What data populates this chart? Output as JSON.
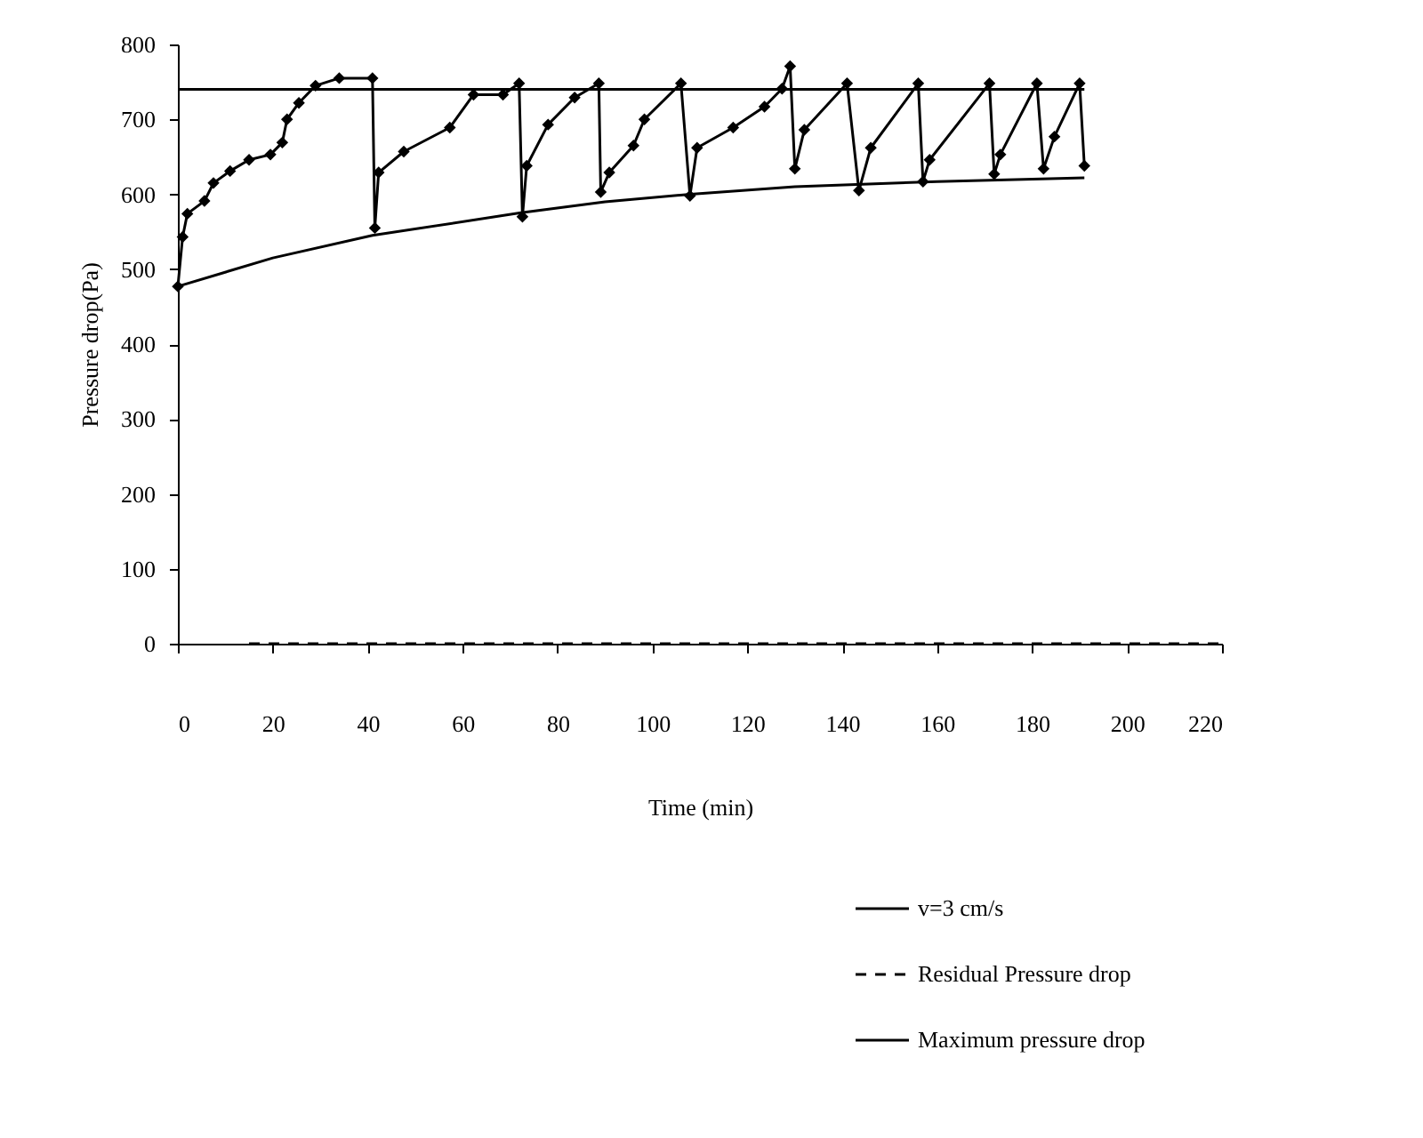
{
  "chart_data": {
    "type": "line",
    "xlabel": "Time (min)",
    "ylabel": "Pressure drop(Pa)",
    "xlim": [
      0,
      220
    ],
    "xticks": [
      0,
      20,
      40,
      60,
      80,
      100,
      120,
      140,
      160,
      180,
      200,
      220
    ],
    "ylim": [
      0,
      800
    ],
    "yticks": [
      0,
      100,
      200,
      300,
      400,
      500,
      600,
      700,
      800
    ],
    "grid": false,
    "legend": "bottom right",
    "series": [
      {
        "name": "v=3 cm/s",
        "color": "#000000",
        "marker": "diamond",
        "line_style": "solid",
        "x": [
          0,
          1,
          2,
          5.6,
          7.5,
          11,
          15,
          19.5,
          22,
          23,
          25.5,
          29,
          34,
          41,
          41.5,
          42.3,
          47.6,
          57.3,
          62.3,
          68.5,
          71.9,
          72.6,
          73.5,
          78,
          83.6,
          88.7,
          89.1,
          90.9,
          96,
          98.3,
          106,
          107.9,
          109.4,
          117,
          123.6,
          127.3,
          129,
          130,
          132,
          141,
          143.5,
          146,
          156,
          157,
          158.4,
          171,
          172,
          173.3,
          181,
          182.4,
          184.7,
          190,
          191
        ],
        "values": [
          477,
          543,
          574,
          591,
          615,
          631,
          646,
          653,
          669,
          700,
          722,
          745,
          755,
          755,
          555,
          629,
          657,
          689,
          733,
          733,
          748,
          570,
          638,
          693,
          729,
          748,
          603,
          629,
          665,
          700,
          748,
          598,
          662,
          689,
          717,
          741,
          771,
          634,
          686,
          748,
          605,
          662,
          748,
          617,
          646,
          748,
          627,
          653,
          748,
          634,
          677,
          748,
          638
        ]
      },
      {
        "name": "Residual Pressure drop",
        "color": "#000000",
        "marker": "none",
        "line_style": "dashed",
        "x": [
          15,
          220
        ],
        "values": [
          0,
          0
        ]
      },
      {
        "name": "Maximum pressure drop",
        "color": "#000000",
        "marker": "none",
        "line_style": "solid",
        "x": [
          0,
          191
        ],
        "values": [
          740,
          740
        ]
      },
      {
        "color": "#000000",
        "marker": "none",
        "line_style": "solid",
        "x": [
          0,
          20,
          41,
          72,
          90,
          108,
          130,
          160,
          191
        ],
        "values": [
          477,
          515,
          545,
          575,
          590,
          600,
          610,
          617,
          622
        ]
      }
    ]
  }
}
